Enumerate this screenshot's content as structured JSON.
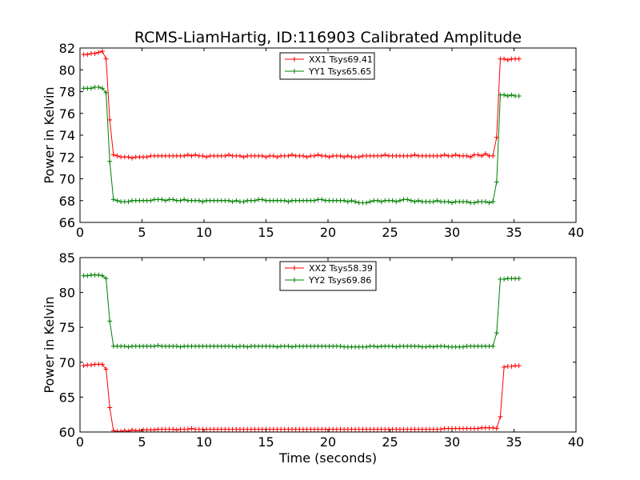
{
  "figure": {
    "title": "RCMS-LiamHartig, ID:116903 Calibrated Amplitude"
  },
  "chart_data": [
    {
      "type": "line",
      "xlabel": "",
      "ylabel": "Power in Kelvin",
      "xlim": [
        0,
        40
      ],
      "ylim": [
        66,
        82
      ],
      "xticks": [
        0,
        5,
        10,
        15,
        20,
        25,
        30,
        35,
        40
      ],
      "yticks": [
        66,
        68,
        70,
        72,
        74,
        76,
        78,
        80,
        82
      ],
      "grid": false,
      "legend": "top-center",
      "series": [
        {
          "name": "XX1 Tsys69.41",
          "color": "#ff0000",
          "x": [
            0.3,
            0.6,
            0.9,
            1.2,
            1.5,
            1.8,
            2.1,
            2.4,
            2.7,
            3.0,
            3.3,
            3.6,
            3.9,
            4.2,
            4.5,
            4.8,
            5.1,
            5.4,
            5.7,
            6.0,
            6.3,
            6.6,
            6.9,
            7.2,
            7.5,
            7.8,
            8.1,
            8.4,
            8.7,
            9.0,
            9.3,
            9.6,
            9.9,
            10.2,
            10.5,
            10.8,
            11.1,
            11.4,
            11.7,
            12.0,
            12.3,
            12.6,
            12.9,
            13.2,
            13.5,
            13.8,
            14.1,
            14.4,
            14.7,
            15.0,
            15.3,
            15.6,
            15.9,
            16.2,
            16.5,
            16.8,
            17.1,
            17.4,
            17.7,
            18.0,
            18.3,
            18.6,
            18.9,
            19.2,
            19.5,
            19.8,
            20.1,
            20.4,
            20.7,
            21.0,
            21.3,
            21.6,
            21.9,
            22.2,
            22.5,
            22.8,
            23.1,
            23.4,
            23.7,
            24.0,
            24.3,
            24.6,
            24.9,
            25.2,
            25.5,
            25.8,
            26.1,
            26.4,
            26.7,
            27.0,
            27.3,
            27.6,
            27.9,
            28.2,
            28.5,
            28.8,
            29.1,
            29.4,
            29.7,
            30.0,
            30.3,
            30.6,
            30.9,
            31.2,
            31.5,
            31.8,
            32.1,
            32.4,
            32.7,
            33.0,
            33.3,
            33.6,
            33.9,
            34.2,
            34.5,
            34.8,
            35.1,
            35.4
          ],
          "y": [
            81.4,
            81.4,
            81.5,
            81.5,
            81.6,
            81.7,
            81.0,
            75.4,
            72.2,
            72.1,
            72.0,
            72.0,
            72.0,
            71.9,
            72.0,
            72.0,
            72.0,
            72.0,
            72.1,
            72.1,
            72.1,
            72.1,
            72.1,
            72.1,
            72.1,
            72.1,
            72.1,
            72.1,
            72.2,
            72.1,
            72.2,
            72.1,
            72.1,
            72.0,
            72.1,
            72.1,
            72.1,
            72.1,
            72.1,
            72.2,
            72.1,
            72.1,
            72.1,
            72.0,
            72.1,
            72.1,
            72.1,
            72.1,
            72.1,
            72.0,
            72.1,
            72.1,
            72.0,
            72.1,
            72.1,
            72.1,
            72.2,
            72.1,
            72.1,
            72.1,
            72.0,
            72.1,
            72.1,
            72.2,
            72.1,
            72.1,
            72.0,
            72.1,
            72.1,
            72.1,
            72.0,
            72.1,
            72.0,
            72.0,
            72.0,
            72.1,
            72.1,
            72.1,
            72.1,
            72.1,
            72.1,
            72.2,
            72.1,
            72.1,
            72.1,
            72.1,
            72.1,
            72.1,
            72.1,
            72.2,
            72.1,
            72.1,
            72.1,
            72.1,
            72.1,
            72.1,
            72.1,
            72.2,
            72.1,
            72.1,
            72.2,
            72.1,
            72.1,
            72.1,
            72.0,
            72.2,
            72.2,
            72.1,
            72.3,
            72.1,
            72.1,
            73.8,
            81.0,
            81.0,
            80.9,
            81.0,
            81.0,
            81.0
          ]
        },
        {
          "name": "YY1 Tsys65.65",
          "color": "#008000",
          "x": [
            0.3,
            0.6,
            0.9,
            1.2,
            1.5,
            1.8,
            2.1,
            2.4,
            2.7,
            3.0,
            3.3,
            3.6,
            3.9,
            4.2,
            4.5,
            4.8,
            5.1,
            5.4,
            5.7,
            6.0,
            6.3,
            6.6,
            6.9,
            7.2,
            7.5,
            7.8,
            8.1,
            8.4,
            8.7,
            9.0,
            9.3,
            9.6,
            9.9,
            10.2,
            10.5,
            10.8,
            11.1,
            11.4,
            11.7,
            12.0,
            12.3,
            12.6,
            12.9,
            13.2,
            13.5,
            13.8,
            14.1,
            14.4,
            14.7,
            15.0,
            15.3,
            15.6,
            15.9,
            16.2,
            16.5,
            16.8,
            17.1,
            17.4,
            17.7,
            18.0,
            18.3,
            18.6,
            18.9,
            19.2,
            19.5,
            19.8,
            20.1,
            20.4,
            20.7,
            21.0,
            21.3,
            21.6,
            21.9,
            22.2,
            22.5,
            22.8,
            23.1,
            23.4,
            23.7,
            24.0,
            24.3,
            24.6,
            24.9,
            25.2,
            25.5,
            25.8,
            26.1,
            26.4,
            26.7,
            27.0,
            27.3,
            27.6,
            27.9,
            28.2,
            28.5,
            28.8,
            29.1,
            29.4,
            29.7,
            30.0,
            30.3,
            30.6,
            30.9,
            31.2,
            31.5,
            31.8,
            32.1,
            32.4,
            32.7,
            33.0,
            33.3,
            33.6,
            33.9,
            34.2,
            34.5,
            34.8,
            35.1,
            35.4
          ],
          "y": [
            78.3,
            78.3,
            78.3,
            78.4,
            78.4,
            78.3,
            77.9,
            71.6,
            68.1,
            68.0,
            67.9,
            67.9,
            67.9,
            68.0,
            68.0,
            68.0,
            68.0,
            68.0,
            68.0,
            68.1,
            68.1,
            68.1,
            68.0,
            68.1,
            68.1,
            68.0,
            68.0,
            68.1,
            68.0,
            68.0,
            68.0,
            68.0,
            67.9,
            68.0,
            68.0,
            68.0,
            68.0,
            68.0,
            68.0,
            68.0,
            67.9,
            68.0,
            67.9,
            67.9,
            68.0,
            68.0,
            68.0,
            68.1,
            68.1,
            68.0,
            68.0,
            68.0,
            68.0,
            68.0,
            68.0,
            67.9,
            68.0,
            68.0,
            68.0,
            68.0,
            68.0,
            68.0,
            68.0,
            68.1,
            68.1,
            68.0,
            68.0,
            68.0,
            68.0,
            68.0,
            68.0,
            67.9,
            68.0,
            67.9,
            67.8,
            67.8,
            67.8,
            67.9,
            68.0,
            68.0,
            67.9,
            68.0,
            68.0,
            68.0,
            67.9,
            68.0,
            68.1,
            68.1,
            68.0,
            67.9,
            68.0,
            67.9,
            67.9,
            67.9,
            67.9,
            68.0,
            67.9,
            67.9,
            67.9,
            67.8,
            67.9,
            67.9,
            67.9,
            67.9,
            67.8,
            67.8,
            67.9,
            67.9,
            67.9,
            67.8,
            67.9,
            69.7,
            77.7,
            77.7,
            77.6,
            77.7,
            77.6,
            77.6
          ]
        }
      ]
    },
    {
      "type": "line",
      "xlabel": "Time (seconds)",
      "ylabel": "Power in Kelvin",
      "xlim": [
        0,
        40
      ],
      "ylim": [
        60,
        85
      ],
      "xticks": [
        0,
        5,
        10,
        15,
        20,
        25,
        30,
        35,
        40
      ],
      "yticks": [
        60,
        65,
        70,
        75,
        80,
        85
      ],
      "grid": false,
      "legend": "top-center",
      "series": [
        {
          "name": "XX2 Tsys58.39",
          "color": "#ff0000",
          "x": [
            0.3,
            0.6,
            0.9,
            1.2,
            1.5,
            1.8,
            2.1,
            2.4,
            2.7,
            3.0,
            3.3,
            3.6,
            3.9,
            4.2,
            4.5,
            4.8,
            5.1,
            5.4,
            5.7,
            6.0,
            6.3,
            6.6,
            6.9,
            7.2,
            7.5,
            7.8,
            8.1,
            8.4,
            8.7,
            9.0,
            9.3,
            9.6,
            9.9,
            10.2,
            10.5,
            10.8,
            11.1,
            11.4,
            11.7,
            12.0,
            12.3,
            12.6,
            12.9,
            13.2,
            13.5,
            13.8,
            14.1,
            14.4,
            14.7,
            15.0,
            15.3,
            15.6,
            15.9,
            16.2,
            16.5,
            16.8,
            17.1,
            17.4,
            17.7,
            18.0,
            18.3,
            18.6,
            18.9,
            19.2,
            19.5,
            19.8,
            20.1,
            20.4,
            20.7,
            21.0,
            21.3,
            21.6,
            21.9,
            22.2,
            22.5,
            22.8,
            23.1,
            23.4,
            23.7,
            24.0,
            24.3,
            24.6,
            24.9,
            25.2,
            25.5,
            25.8,
            26.1,
            26.4,
            26.7,
            27.0,
            27.3,
            27.6,
            27.9,
            28.2,
            28.5,
            28.8,
            29.1,
            29.4,
            29.7,
            30.0,
            30.3,
            30.6,
            30.9,
            31.2,
            31.5,
            31.8,
            32.1,
            32.4,
            32.7,
            33.0,
            33.3,
            33.6,
            33.9,
            34.2,
            34.5,
            34.8,
            35.1,
            35.4
          ],
          "y": [
            69.5,
            69.6,
            69.6,
            69.7,
            69.7,
            69.7,
            69.0,
            63.5,
            60.2,
            60.1,
            60.1,
            60.2,
            60.1,
            60.3,
            60.2,
            60.2,
            60.3,
            60.3,
            60.3,
            60.3,
            60.4,
            60.4,
            60.4,
            60.4,
            60.4,
            60.3,
            60.4,
            60.4,
            60.4,
            60.5,
            60.4,
            60.4,
            60.4,
            60.4,
            60.4,
            60.4,
            60.4,
            60.4,
            60.4,
            60.4,
            60.4,
            60.4,
            60.4,
            60.4,
            60.4,
            60.4,
            60.4,
            60.4,
            60.4,
            60.4,
            60.4,
            60.4,
            60.4,
            60.4,
            60.4,
            60.4,
            60.4,
            60.4,
            60.4,
            60.4,
            60.4,
            60.4,
            60.4,
            60.4,
            60.4,
            60.4,
            60.4,
            60.4,
            60.4,
            60.4,
            60.4,
            60.4,
            60.4,
            60.4,
            60.4,
            60.4,
            60.4,
            60.4,
            60.4,
            60.4,
            60.4,
            60.4,
            60.4,
            60.4,
            60.4,
            60.4,
            60.4,
            60.4,
            60.4,
            60.4,
            60.4,
            60.4,
            60.4,
            60.4,
            60.4,
            60.4,
            60.4,
            60.5,
            60.5,
            60.5,
            60.5,
            60.5,
            60.5,
            60.5,
            60.5,
            60.5,
            60.5,
            60.6,
            60.6,
            60.6,
            60.6,
            60.5,
            62.2,
            69.3,
            69.4,
            69.4,
            69.5,
            69.5
          ]
        },
        {
          "name": "YY2 Tsys69.86",
          "color": "#008000",
          "x": [
            0.3,
            0.6,
            0.9,
            1.2,
            1.5,
            1.8,
            2.1,
            2.4,
            2.7,
            3.0,
            3.3,
            3.6,
            3.9,
            4.2,
            4.5,
            4.8,
            5.1,
            5.4,
            5.7,
            6.0,
            6.3,
            6.6,
            6.9,
            7.2,
            7.5,
            7.8,
            8.1,
            8.4,
            8.7,
            9.0,
            9.3,
            9.6,
            9.9,
            10.2,
            10.5,
            10.8,
            11.1,
            11.4,
            11.7,
            12.0,
            12.3,
            12.6,
            12.9,
            13.2,
            13.5,
            13.8,
            14.1,
            14.4,
            14.7,
            15.0,
            15.3,
            15.6,
            15.9,
            16.2,
            16.5,
            16.8,
            17.1,
            17.4,
            17.7,
            18.0,
            18.3,
            18.6,
            18.9,
            19.2,
            19.5,
            19.8,
            20.1,
            20.4,
            20.7,
            21.0,
            21.3,
            21.6,
            21.9,
            22.2,
            22.5,
            22.8,
            23.1,
            23.4,
            23.7,
            24.0,
            24.3,
            24.6,
            24.9,
            25.2,
            25.5,
            25.8,
            26.1,
            26.4,
            26.7,
            27.0,
            27.3,
            27.6,
            27.9,
            28.2,
            28.5,
            28.8,
            29.1,
            29.4,
            29.7,
            30.0,
            30.3,
            30.6,
            30.9,
            31.2,
            31.5,
            31.8,
            32.1,
            32.4,
            32.7,
            33.0,
            33.3,
            33.6,
            33.9,
            34.2,
            34.5,
            34.8,
            35.1,
            35.4
          ],
          "y": [
            82.4,
            82.4,
            82.5,
            82.5,
            82.5,
            82.4,
            82.0,
            75.9,
            72.3,
            72.3,
            72.3,
            72.3,
            72.2,
            72.3,
            72.3,
            72.3,
            72.3,
            72.3,
            72.3,
            72.3,
            72.4,
            72.3,
            72.3,
            72.3,
            72.3,
            72.3,
            72.2,
            72.3,
            72.3,
            72.3,
            72.3,
            72.3,
            72.3,
            72.3,
            72.3,
            72.3,
            72.3,
            72.3,
            72.3,
            72.3,
            72.3,
            72.2,
            72.3,
            72.3,
            72.2,
            72.3,
            72.3,
            72.3,
            72.3,
            72.3,
            72.3,
            72.3,
            72.2,
            72.3,
            72.3,
            72.3,
            72.2,
            72.3,
            72.3,
            72.3,
            72.3,
            72.3,
            72.3,
            72.3,
            72.3,
            72.3,
            72.3,
            72.3,
            72.3,
            72.3,
            72.2,
            72.2,
            72.2,
            72.2,
            72.2,
            72.2,
            72.2,
            72.3,
            72.3,
            72.2,
            72.3,
            72.3,
            72.3,
            72.3,
            72.2,
            72.3,
            72.3,
            72.3,
            72.3,
            72.3,
            72.3,
            72.2,
            72.2,
            72.3,
            72.2,
            72.3,
            72.3,
            72.3,
            72.2,
            72.2,
            72.2,
            72.2,
            72.2,
            72.3,
            72.3,
            72.3,
            72.3,
            72.3,
            72.3,
            72.3,
            72.3,
            74.2,
            81.9,
            81.9,
            82.0,
            82.0,
            82.0,
            82.0
          ]
        }
      ]
    }
  ]
}
